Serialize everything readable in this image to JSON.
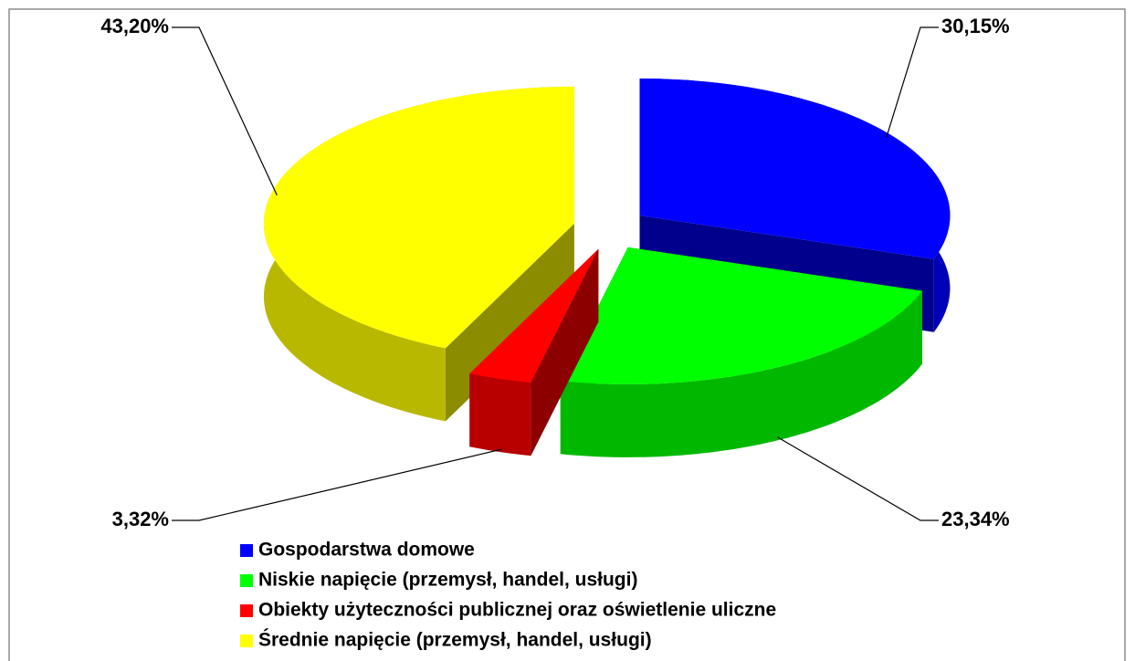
{
  "chart_data": {
    "type": "pie",
    "three_d": true,
    "exploded": true,
    "categories": [
      "Gospodarstwa domowe",
      "Niskie napięcie (przemysł, handel, usługi)",
      "Obiekty użyteczności publicznej oraz oświetlenie uliczne",
      "Średnie napięcie (przemysł, handel, usługi)"
    ],
    "values": [
      30.15,
      23.34,
      3.32,
      43.2
    ],
    "value_labels": [
      "30,15%",
      "23,34%",
      "3,32%",
      "43,20%"
    ],
    "colors": [
      "#0000ff",
      "#00ff00",
      "#ff0000",
      "#ffff00"
    ],
    "legend": "bottom"
  }
}
